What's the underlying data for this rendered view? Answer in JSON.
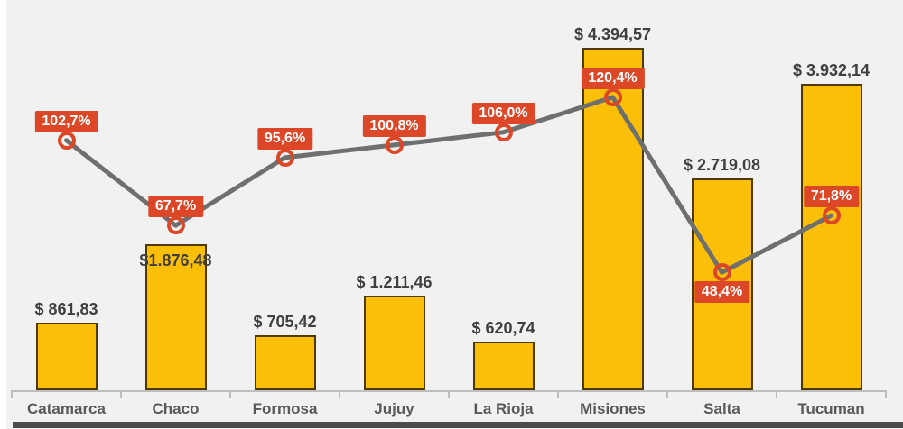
{
  "colors": {
    "background": "#f1f1f2",
    "bar_fill": "#fcbf08",
    "bar_border": "#4d3a00",
    "line": "#6f6f6f",
    "marker_ring": "#dc4727",
    "pct_label_bg": "#dc4727",
    "pct_label_text": "#ffffff",
    "value_label_text": "#3f3f3f",
    "category_text": "#595959",
    "axis": "#bdbdbd",
    "footer_strip": "#4c4c4c"
  },
  "chart_data": {
    "type": "combo_bar_line",
    "title": "",
    "legend": false,
    "grid": false,
    "categories": [
      "Catamarca",
      "Chaco",
      "Formosa",
      "Jujuy",
      "La Rioja",
      "Misiones",
      "Salta",
      "Tucuman"
    ],
    "bar_series": {
      "values": [
        861.83,
        1876.48,
        705.42,
        1211.46,
        620.74,
        4394.57,
        2719.08,
        3932.14
      ],
      "labels": [
        "$ 861,83",
        "$1.876,48",
        "$ 705,42",
        "$ 1.211,46",
        "$ 620,74",
        "$ 4.394,57",
        "$ 2.719,08",
        "$ 3.932,14"
      ],
      "label_placement": [
        "above",
        "inside",
        "above",
        "above",
        "above",
        "above",
        "above",
        "above"
      ]
    },
    "line_series": {
      "values": [
        102.7,
        67.7,
        95.6,
        100.8,
        106.0,
        120.4,
        48.4,
        71.8
      ],
      "labels": [
        "102,7%",
        "67,7%",
        "95,6%",
        "100,8%",
        "106,0%",
        "120,4%",
        "48,4%",
        "71,8%"
      ],
      "label_placement": [
        "above",
        "above",
        "above",
        "above",
        "above",
        "above",
        "below",
        "above"
      ]
    },
    "value_axis": {
      "min": 0,
      "max_implied": 4400,
      "visible": false
    },
    "percent_axis": {
      "min": 0,
      "max_implied": 140,
      "visible": false
    }
  }
}
